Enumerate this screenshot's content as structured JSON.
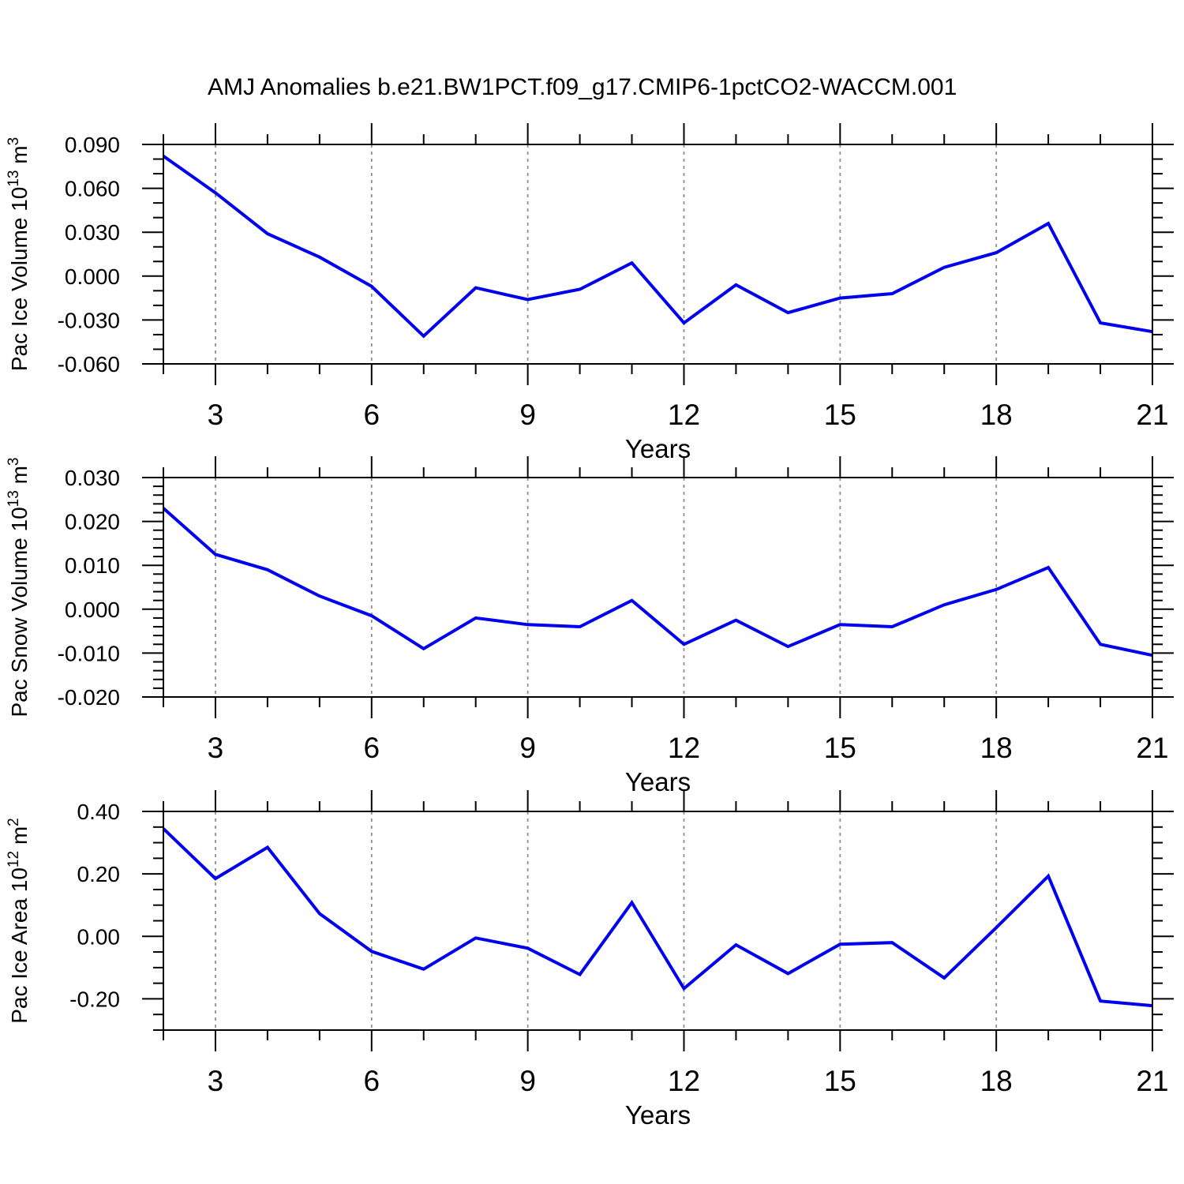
{
  "title": "AMJ Anomalies b.e21.BW1PCT.f09_g17.CMIP6-1pctCO2-WACCM.001",
  "colors": {
    "line": "#0000ee",
    "grid": "#909090",
    "frame": "#000000",
    "text": "#000000"
  },
  "chart_data": [
    {
      "type": "line",
      "name": "pac-ice-volume",
      "ylabel_parts": [
        {
          "t": "Pac Ice Volume 10"
        },
        {
          "sup": "13"
        },
        {
          "t": " m"
        },
        {
          "sup": "3"
        }
      ],
      "xlabel": "Years",
      "x": [
        2,
        3,
        4,
        5,
        6,
        7,
        8,
        9,
        10,
        11,
        12,
        13,
        14,
        15,
        16,
        17,
        18,
        19,
        20,
        21
      ],
      "values": [
        0.082,
        0.057,
        0.029,
        0.013,
        -0.007,
        -0.041,
        -0.008,
        -0.016,
        -0.009,
        0.009,
        -0.032,
        -0.006,
        -0.025,
        -0.015,
        -0.012,
        0.006,
        0.016,
        0.036,
        -0.032,
        -0.038
      ],
      "xlim": [
        2,
        21
      ],
      "ylim": [
        -0.06,
        0.09
      ],
      "xticks": [
        3,
        6,
        9,
        12,
        15,
        18,
        21
      ],
      "xtick_labels": [
        "3",
        "6",
        "9",
        "12",
        "15",
        "18",
        "21"
      ],
      "x_minor_step": 1,
      "ytick_values": [
        0.09,
        0.06,
        0.03,
        0.0,
        -0.03,
        -0.06
      ],
      "ytick_labels": [
        "0.090",
        "0.060",
        "0.030",
        "0.000",
        "-0.030",
        "-0.060"
      ],
      "y_minor_step": 0.01,
      "grid_x": [
        3,
        6,
        9,
        12,
        15,
        18
      ],
      "grid_style": "vertical-dashed",
      "legend": "none"
    },
    {
      "type": "line",
      "name": "pac-snow-volume",
      "ylabel_parts": [
        {
          "t": "Pac Snow Volume 10"
        },
        {
          "sup": "13"
        },
        {
          "t": " m"
        },
        {
          "sup": "3"
        }
      ],
      "xlabel": "Years",
      "x": [
        2,
        3,
        4,
        5,
        6,
        7,
        8,
        9,
        10,
        11,
        12,
        13,
        14,
        15,
        16,
        17,
        18,
        19,
        20,
        21
      ],
      "values": [
        0.023,
        0.0125,
        0.009,
        0.003,
        -0.0015,
        -0.009,
        -0.002,
        -0.0035,
        -0.004,
        0.002,
        -0.008,
        -0.0025,
        -0.0085,
        -0.0035,
        -0.004,
        0.001,
        0.0045,
        0.0095,
        -0.008,
        -0.0105
      ],
      "xlim": [
        2,
        21
      ],
      "ylim": [
        -0.02,
        0.03
      ],
      "xticks": [
        3,
        6,
        9,
        12,
        15,
        18,
        21
      ],
      "xtick_labels": [
        "3",
        "6",
        "9",
        "12",
        "15",
        "18",
        "21"
      ],
      "x_minor_step": 1,
      "ytick_values": [
        0.03,
        0.02,
        0.01,
        0.0,
        -0.01,
        -0.02
      ],
      "ytick_labels": [
        "0.030",
        "0.020",
        "0.010",
        "0.000",
        "-0.010",
        "-0.020"
      ],
      "y_minor_step": 0.002,
      "grid_x": [
        3,
        6,
        9,
        12,
        15,
        18
      ],
      "grid_style": "vertical-dashed",
      "legend": "none"
    },
    {
      "type": "line",
      "name": "pac-ice-area",
      "ylabel_parts": [
        {
          "t": "Pac Ice Area 10"
        },
        {
          "sup": "12"
        },
        {
          "t": " m"
        },
        {
          "sup": "2"
        }
      ],
      "xlabel": "Years",
      "x": [
        2,
        3,
        4,
        5,
        6,
        7,
        8,
        9,
        10,
        11,
        12,
        13,
        14,
        15,
        16,
        17,
        18,
        19,
        20,
        21
      ],
      "values": [
        0.345,
        0.185,
        0.285,
        0.073,
        -0.048,
        -0.105,
        -0.005,
        -0.038,
        -0.122,
        0.108,
        -0.167,
        -0.027,
        -0.119,
        -0.025,
        -0.02,
        -0.133,
        0.028,
        0.193,
        -0.207,
        -0.222
      ],
      "xlim": [
        2,
        21
      ],
      "ylim": [
        -0.3,
        0.4
      ],
      "xticks": [
        3,
        6,
        9,
        12,
        15,
        18,
        21
      ],
      "xtick_labels": [
        "3",
        "6",
        "9",
        "12",
        "15",
        "18",
        "21"
      ],
      "x_minor_step": 1,
      "ytick_values": [
        0.4,
        0.2,
        0.0,
        -0.2
      ],
      "ytick_labels": [
        "0.40",
        "0.20",
        "0.00",
        "-0.20"
      ],
      "y_minor_step": 0.05,
      "grid_x": [
        3,
        6,
        9,
        12,
        15,
        18
      ],
      "grid_style": "vertical-dashed",
      "legend": "none"
    }
  ]
}
